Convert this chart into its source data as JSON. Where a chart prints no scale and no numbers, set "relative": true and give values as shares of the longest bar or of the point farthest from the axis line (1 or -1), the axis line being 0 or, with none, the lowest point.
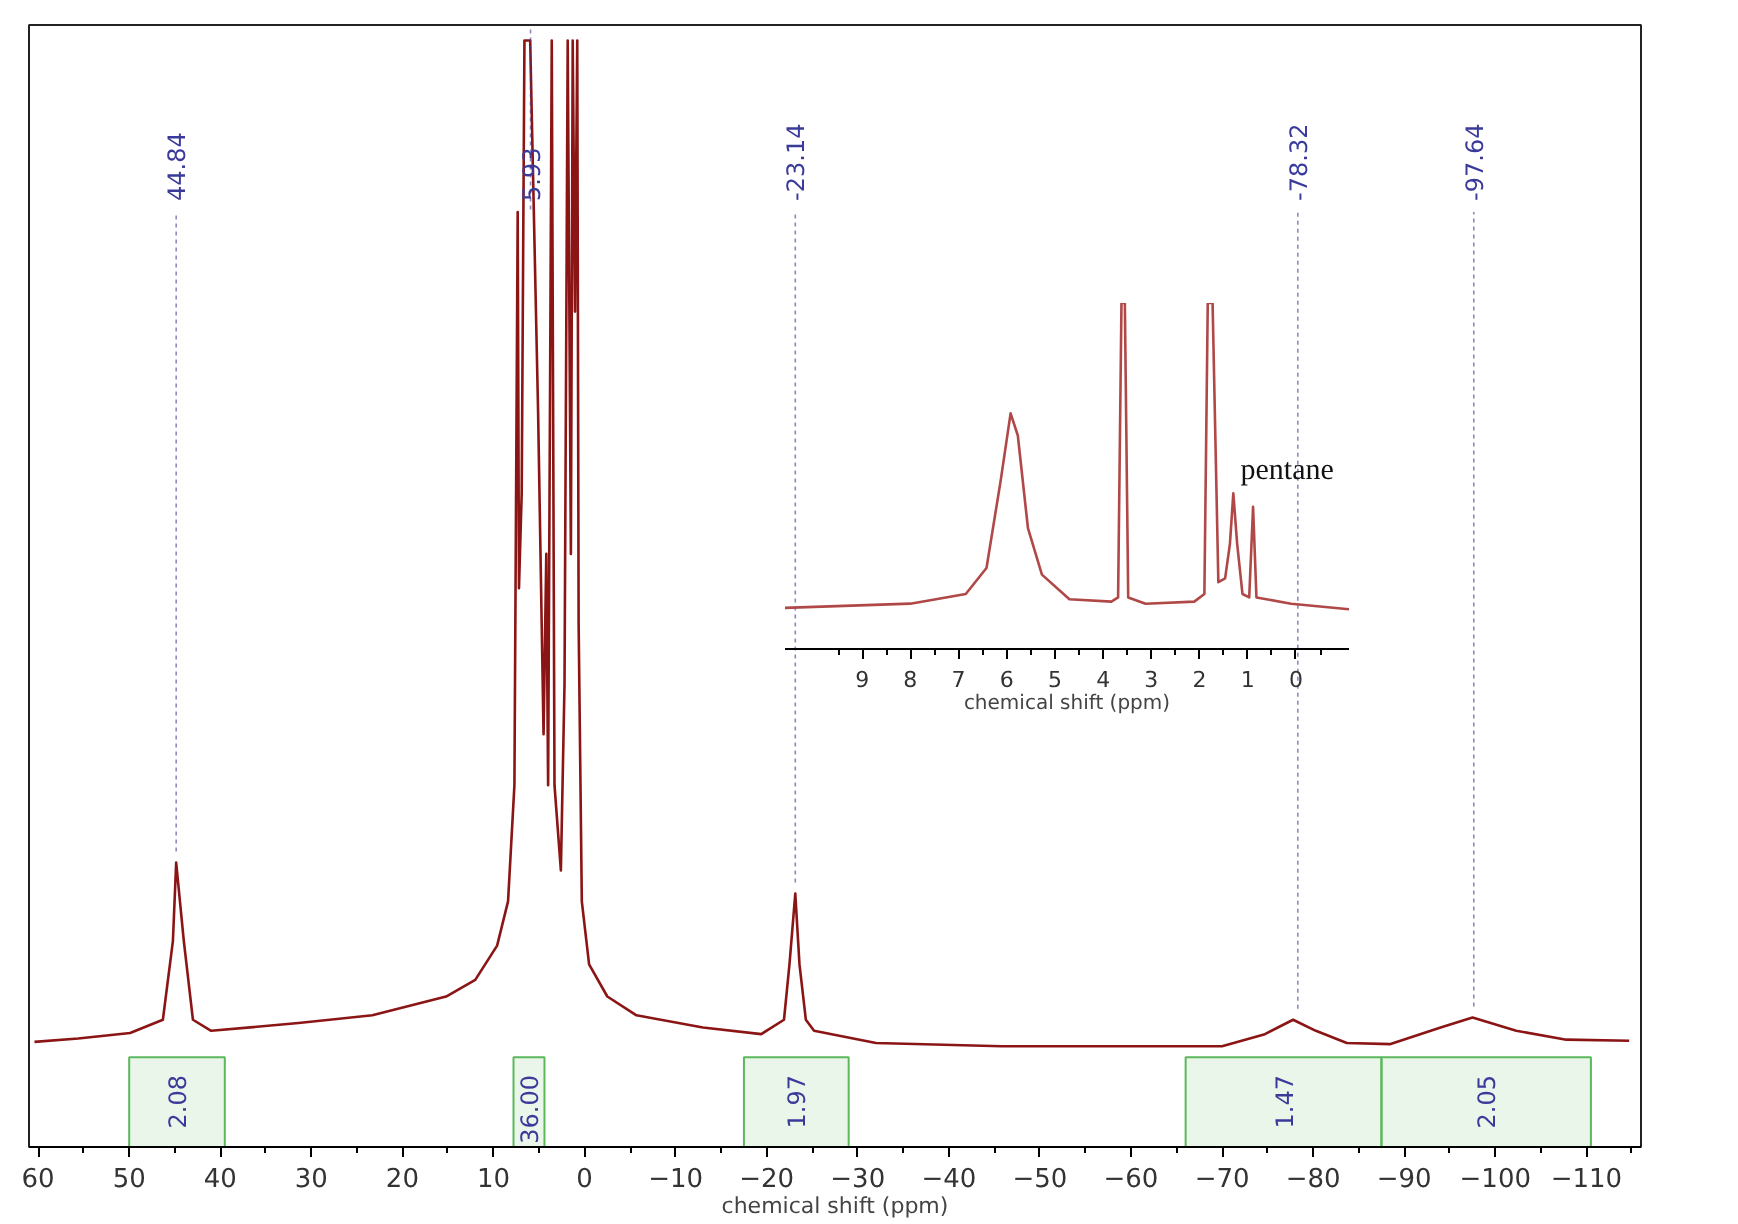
{
  "chart_data": [
    {
      "type": "line",
      "relative": true,
      "xlabel": "chemical shift (ppm)",
      "xlim": [
        61,
        -116
      ],
      "xticks": [
        60,
        50,
        40,
        30,
        20,
        10,
        0,
        -10,
        -20,
        -30,
        -40,
        -50,
        -60,
        -70,
        -80,
        -90,
        -100,
        -110
      ],
      "series": [
        {
          "color": "#8b1515",
          "x": [
            60.4,
            55.6,
            49.9,
            46.3,
            45.2,
            44.84,
            44.0,
            43.0,
            41.0,
            31.4,
            23.3,
            15.2,
            12.0,
            9.6,
            8.4,
            7.7,
            7.34,
            7.2,
            6.9,
            6.6,
            5.97,
            5.1,
            4.5,
            4.2,
            4.0,
            3.6,
            3.3,
            2.6,
            2.2,
            1.85,
            1.5,
            1.3,
            1.05,
            0.8,
            0.65,
            0.3,
            -0.5,
            -2.5,
            -5.7,
            -13,
            -19.4,
            -21.9,
            -22.5,
            -23.14,
            -23.6,
            -24.3,
            -25.2,
            -32,
            -45.8,
            -59.6,
            -70,
            -74.7,
            -77.8,
            -80.3,
            -83.7,
            -88.5,
            -94,
            -97.5,
            -102.3,
            -107.8,
            -114.7
          ],
          "values": [
            0.095,
            0.098,
            0.103,
            0.115,
            0.186,
            0.257,
            0.186,
            0.115,
            0.105,
            0.112,
            0.119,
            0.136,
            0.151,
            0.182,
            0.222,
            0.327,
            0.845,
            0.505,
            0.591,
            1,
            1,
            0.664,
            0.373,
            0.536,
            0.327,
            1,
            0.327,
            0.25,
            0.418,
            1,
            0.536,
            1,
            0.755,
            1,
            0.473,
            0.222,
            0.165,
            0.136,
            0.119,
            0.108,
            0.102,
            0.115,
            0.165,
            0.229,
            0.165,
            0.115,
            0.105,
            0.094,
            0.091,
            0.091,
            0.091,
            0.102,
            0.115,
            0.105,
            0.094,
            0.093,
            0.108,
            0.117,
            0.105,
            0.097,
            0.096
          ]
        }
      ],
      "annotations": [
        {
          "text": "44.84",
          "x": 44.84,
          "y": 0.257
        },
        {
          "text": "5.93",
          "x": 5.93,
          "y": 1
        },
        {
          "text": "-23.14",
          "x": -23.14,
          "y": 0.229
        },
        {
          "text": "-78.32",
          "x": -78.32,
          "y": 0.115
        },
        {
          "text": "-97.64",
          "x": -97.64,
          "y": 0.117
        }
      ],
      "bands": [
        {
          "axis": "x",
          "from": 50,
          "to": 39.5,
          "label": "2.08",
          "color": "#5cb85c"
        },
        {
          "axis": "x",
          "from": 7.8,
          "to": 4.4,
          "label": "36.00",
          "color": "#5cb85c"
        },
        {
          "axis": "x",
          "from": -17.5,
          "to": -29,
          "label": "1.97",
          "color": "#5cb85c"
        },
        {
          "axis": "x",
          "from": -66,
          "to": -87.5,
          "label": "1.47",
          "color": "#5cb85c"
        },
        {
          "axis": "x",
          "from": -87.5,
          "to": -110.5,
          "label": "2.05",
          "color": "#5cb85c"
        }
      ]
    },
    {
      "type": "line",
      "relative": true,
      "xlabel": "chemical shift (ppm)",
      "xlim": [
        10.6,
        -1.1
      ],
      "xticks": [
        9,
        8,
        7,
        6,
        5,
        4,
        3,
        2,
        1,
        0
      ],
      "series": [
        {
          "color": "#b04848",
          "x": [
            10.6,
            8.0,
            6.85,
            6.42,
            6.13,
            5.92,
            5.77,
            5.56,
            5.27,
            4.7,
            3.83,
            3.69,
            3.62,
            3.55,
            3.48,
            3.12,
            2.11,
            1.9,
            1.83,
            1.73,
            1.61,
            1.47,
            1.37,
            1.3,
            1.22,
            1.11,
            0.97,
            0.89,
            0.82,
            0.1,
            -1.1
          ],
          "values": [
            0.119,
            0.131,
            0.159,
            0.234,
            0.483,
            0.681,
            0.617,
            0.349,
            0.215,
            0.144,
            0.137,
            0.149,
            1,
            1,
            0.149,
            0.131,
            0.137,
            0.159,
            1,
            1,
            0.193,
            0.204,
            0.304,
            0.45,
            0.304,
            0.159,
            0.149,
            0.411,
            0.149,
            0.131,
            0.115
          ]
        }
      ],
      "annotations": [
        {
          "text": "pentane",
          "x": 1.15,
          "y": 0.469
        }
      ]
    }
  ]
}
